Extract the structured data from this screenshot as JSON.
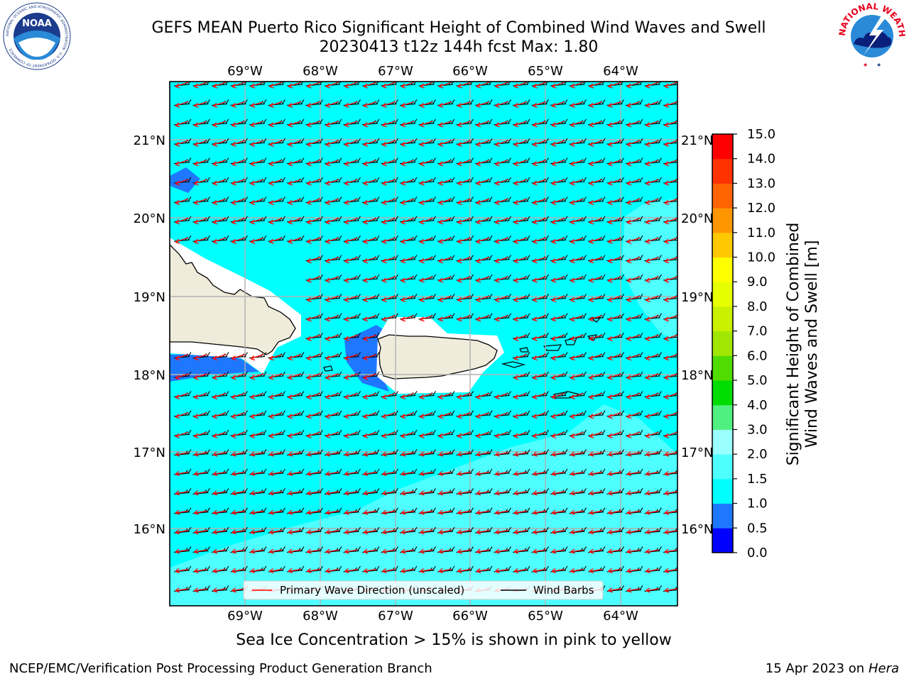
{
  "title": {
    "line1": "GEFS MEAN Puerto Rico Significant Height of Combined Wind Waves and Swell",
    "line2": "20230413 t12z 144h fcst   Max: 1.80"
  },
  "logos": {
    "left": {
      "icon": "noaa-logo",
      "text": "NOAA",
      "ring_text": "NATIONAL OCEANIC AND ATMOSPHERIC ADMINISTRATION · U.S. DEPARTMENT OF COMMERCE"
    },
    "right": {
      "icon": "nws-logo",
      "ring_text": "NATIONAL WEATHER SERVICE"
    }
  },
  "map": {
    "lon_labels": [
      "69°W",
      "68°W",
      "67°W",
      "66°W",
      "65°W",
      "64°W"
    ],
    "lat_labels": [
      "21°N",
      "20°N",
      "19°N",
      "18°N",
      "17°N",
      "16°N"
    ],
    "colors": {
      "ocean": "#00ffff",
      "ocean_light": "#4dffff",
      "ocean_lighter": "#9affff",
      "low_wave": "#1e78ff",
      "land": "#efecdc",
      "gridline": "#b0b0b0",
      "wave_arrow": "#ff0000",
      "wind_barb": "#000000"
    }
  },
  "legend": {
    "primary_wave": "Primary Wave Direction (unscaled)",
    "wind_barbs": "Wind Barbs"
  },
  "colorbar": {
    "label_line1": "Significant Height of Combined",
    "label_line2": "Wind Waves and Swell [m]",
    "ticks": [
      "0.0",
      "0.5",
      "1.0",
      "1.5",
      "2.0",
      "3.0",
      "4.0",
      "5.0",
      "6.0",
      "7.0",
      "8.0",
      "9.0",
      "10.0",
      "11.0",
      "12.0",
      "13.0",
      "14.0",
      "15.0"
    ],
    "colors": [
      "#0000ff",
      "#1e78ff",
      "#00ffff",
      "#4dffff",
      "#9affff",
      "#50f080",
      "#00dc00",
      "#50dc00",
      "#a0e600",
      "#c8f000",
      "#e6ff00",
      "#ffff00",
      "#ffc800",
      "#ff9600",
      "#ff6400",
      "#ff3200",
      "#ff0000"
    ]
  },
  "notes": {
    "sea_ice": "Sea Ice Concentration > 15% is shown in pink to yellow"
  },
  "footer": {
    "left": "NCEP/EMC/Verification Post Processing Product Generation Branch",
    "right_prefix": "15 Apr 2023 on ",
    "right_host": "Hera"
  }
}
